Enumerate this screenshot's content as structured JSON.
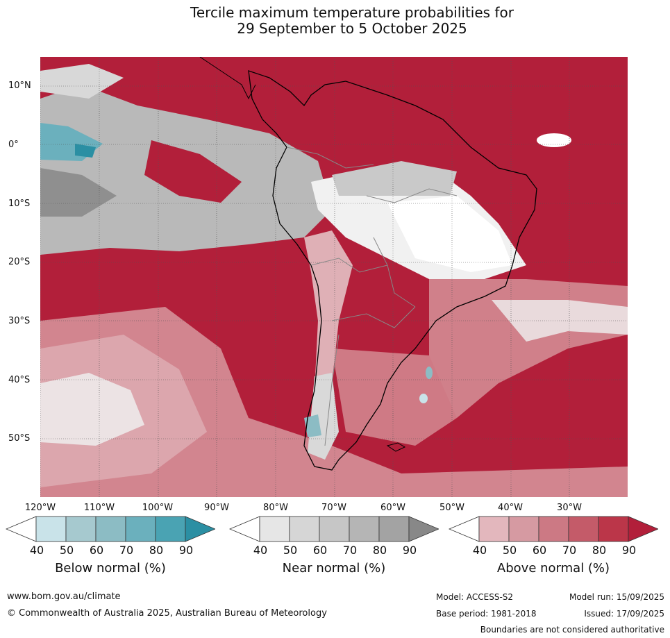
{
  "title": {
    "line1": "Tercile maximum temperature probabilities for",
    "line2": "29 September to 5 October 2025"
  },
  "lat_labels": [
    "10°N",
    "0°",
    "10°S",
    "20°S",
    "30°S",
    "40°S",
    "50°S"
  ],
  "lon_labels": [
    "120°W",
    "110°W",
    "100°W",
    "90°W",
    "80°W",
    "70°W",
    "60°W",
    "50°W",
    "40°W",
    "30°W"
  ],
  "colorbars": [
    {
      "name": "Below normal (%)",
      "ticks": [
        "40",
        "50",
        "60",
        "70",
        "80",
        "90"
      ],
      "colors": [
        "#ffffff",
        "#c9e3e9",
        "#a6c9cf",
        "#8cbcc4",
        "#6bb0bd",
        "#4aa3b3",
        "#2b8fa3"
      ]
    },
    {
      "name": "Near normal (%)",
      "ticks": [
        "40",
        "50",
        "60",
        "70",
        "80",
        "90"
      ],
      "colors": [
        "#ffffff",
        "#e6e6e6",
        "#d6d6d6",
        "#c6c6c6",
        "#b5b5b5",
        "#a3a3a3",
        "#888888"
      ]
    },
    {
      "name": "Above normal (%)",
      "ticks": [
        "40",
        "50",
        "60",
        "70",
        "80",
        "90"
      ],
      "colors": [
        "#ffffff",
        "#e3b7bd",
        "#d69aa2",
        "#cc7984",
        "#c45b69",
        "#bb3649",
        "#b21f3a"
      ]
    }
  ],
  "footer": {
    "website": "www.bom.gov.au/climate",
    "copyright": "© Commonwealth of Australia 2025, Australian Bureau of Meteorology",
    "model": "Model: ACCESS-S2",
    "model_run": "Model run: 15/09/2025",
    "base_period": "Base period: 1981-2018",
    "issued": "Issued: 17/09/2025",
    "disclaimer": "Boundaries are not considered authoritative"
  }
}
